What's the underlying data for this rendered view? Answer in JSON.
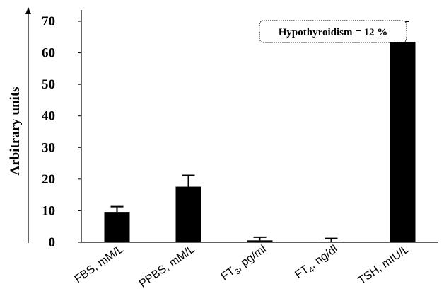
{
  "chart_data": {
    "type": "bar",
    "categories": [
      {
        "main": "FBS, mM/L"
      },
      {
        "main": "PPBS, mM/L"
      },
      {
        "pre": "FT",
        "sub": "3",
        "post": ", pg/ml"
      },
      {
        "pre": "FT",
        "sub": "4",
        "post": ", ng/dl"
      },
      {
        "main": "TSH, mIU/L"
      }
    ],
    "values": [
      9.4,
      17.6,
      0.6,
      0.2,
      63.5
    ],
    "errors": [
      1.9,
      3.6,
      1.0,
      1.0,
      6.5
    ],
    "ylabel": "Arbitrary units",
    "ylim": [
      0,
      70
    ],
    "yticks": [
      0,
      10,
      20,
      30,
      40,
      50,
      60,
      70
    ],
    "annotation": "Hypothyroidism = 12 %",
    "bar_color": "#000000",
    "grid": false
  }
}
